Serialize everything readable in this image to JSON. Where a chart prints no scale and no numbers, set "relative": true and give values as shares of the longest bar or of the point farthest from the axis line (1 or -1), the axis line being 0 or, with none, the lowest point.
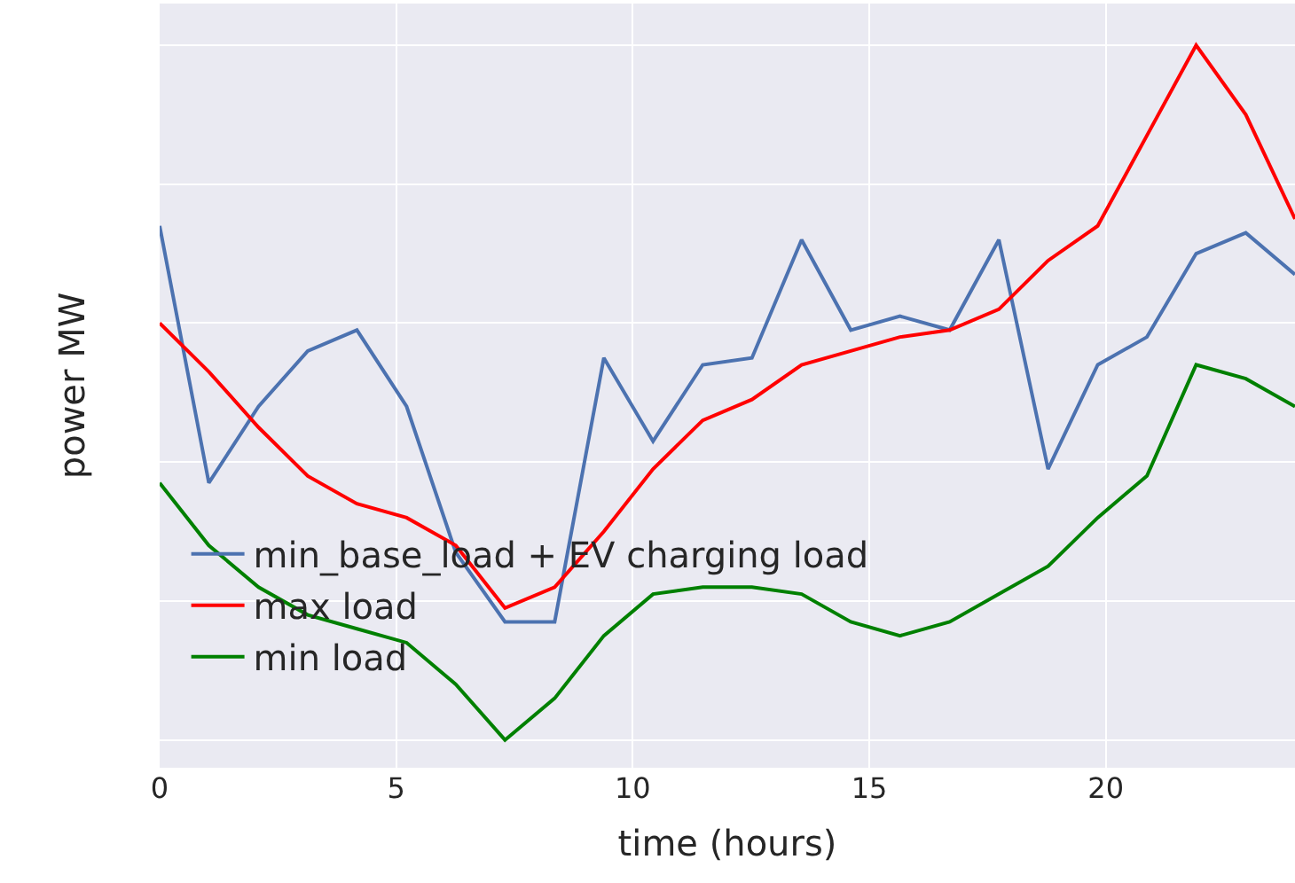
{
  "chart_data": {
    "type": "line",
    "relative": true,
    "xlabel": "time (hours)",
    "ylabel": "power MW",
    "x": [
      0,
      1.04,
      2.09,
      3.13,
      4.17,
      5.22,
      6.26,
      7.3,
      8.35,
      9.39,
      10.43,
      11.48,
      12.52,
      13.57,
      14.61,
      15.65,
      16.7,
      17.74,
      18.78,
      19.83,
      20.87,
      21.91,
      22.96,
      24
    ],
    "xlim": [
      0,
      24
    ],
    "xticks": [
      0,
      5,
      10,
      15,
      20
    ],
    "grid": true,
    "legend": "bottom left",
    "line_style": "solid",
    "marker": "none",
    "series": [
      {
        "name": "min_base_load + EV charging load",
        "color": "#4c72b0",
        "values": [
          0.74,
          0.37,
          0.48,
          0.56,
          0.59,
          0.48,
          0.27,
          0.17,
          0.17,
          0.55,
          0.43,
          0.54,
          0.55,
          0.72,
          0.59,
          0.61,
          0.59,
          0.72,
          0.39,
          0.54,
          0.58,
          0.7,
          0.73,
          0.67
        ]
      },
      {
        "name": "max load",
        "color": "#ff0000",
        "values": [
          0.6,
          0.53,
          0.45,
          0.38,
          0.34,
          0.32,
          0.28,
          0.19,
          0.22,
          0.3,
          0.39,
          0.46,
          0.49,
          0.54,
          0.56,
          0.58,
          0.59,
          0.62,
          0.69,
          0.74,
          0.87,
          1,
          0.9,
          0.75
        ]
      },
      {
        "name": "min load",
        "color": "#008000",
        "values": [
          0.37,
          0.28,
          0.22,
          0.18,
          0.16,
          0.14,
          0.08,
          0,
          0.06,
          0.15,
          0.21,
          0.22,
          0.22,
          0.21,
          0.17,
          0.15,
          0.17,
          0.21,
          0.25,
          0.32,
          0.38,
          0.54,
          0.52,
          0.48
        ]
      }
    ]
  }
}
